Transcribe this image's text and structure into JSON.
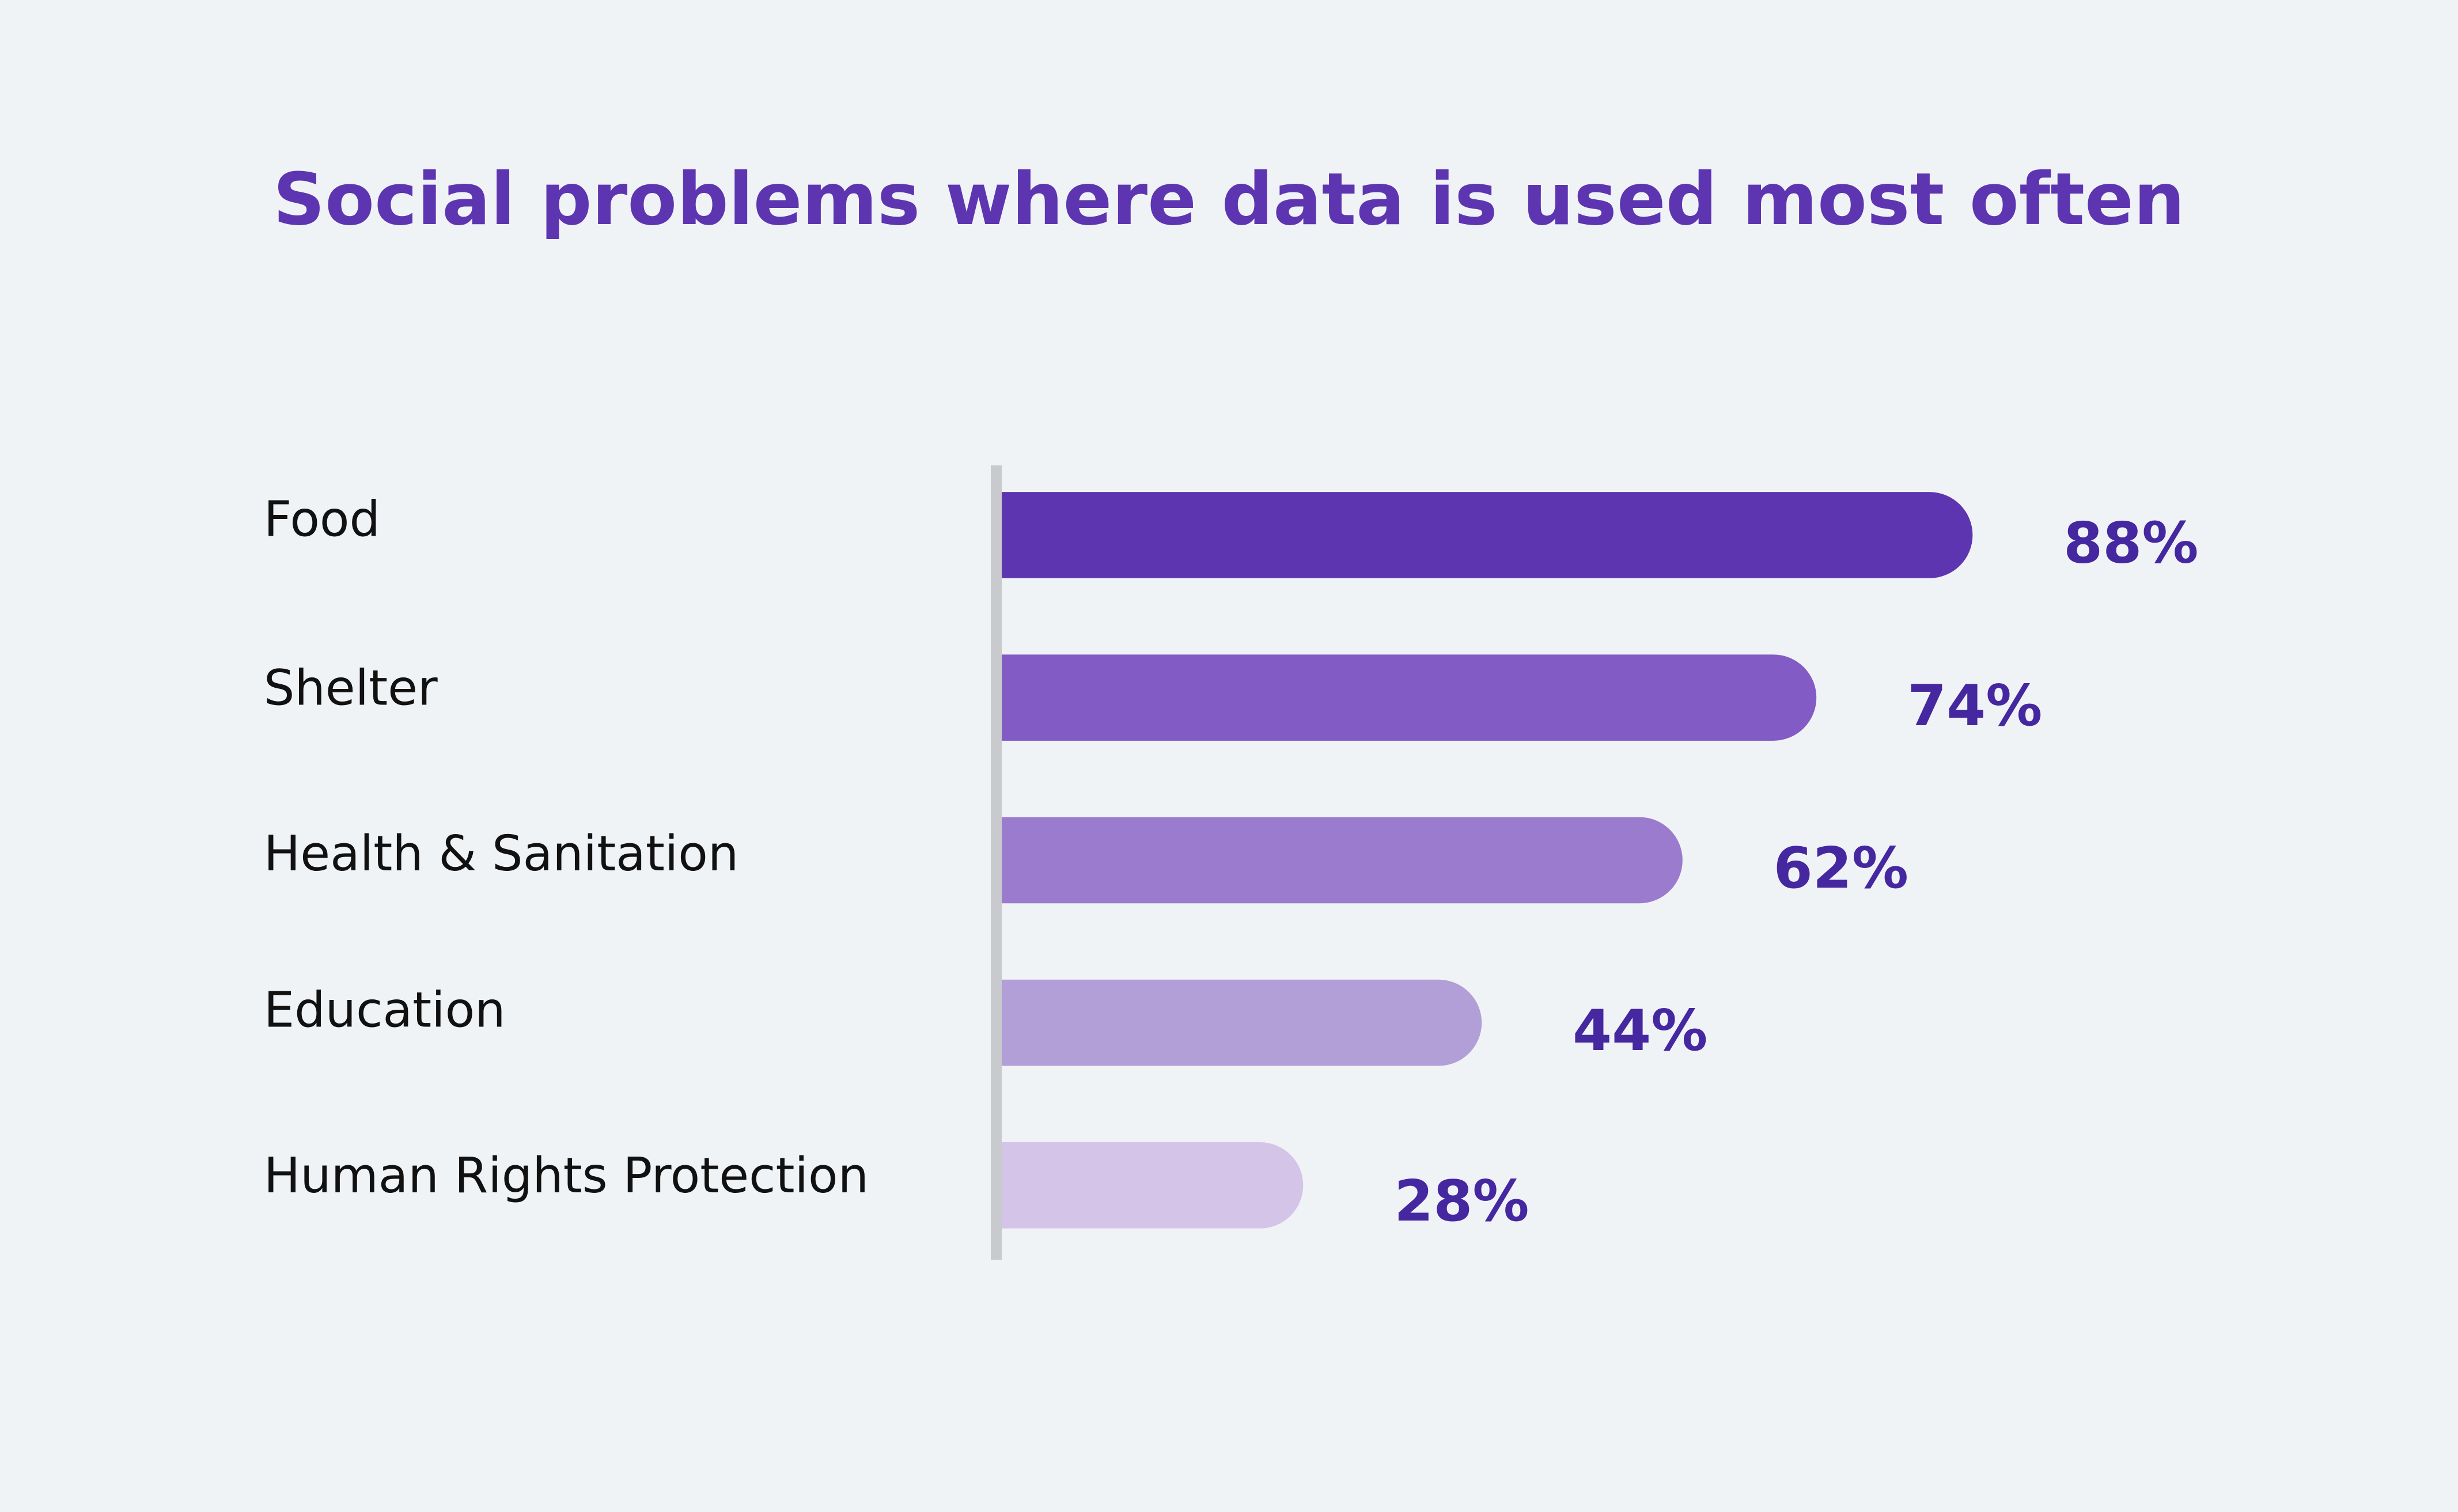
{
  "chart_data": {
    "type": "bar",
    "orientation": "horizontal",
    "title": "Social problems where data is used most often",
    "categories": [
      "Food",
      "Shelter",
      "Health & Sanitation",
      "Education",
      "Human Rights Protection"
    ],
    "values": [
      88,
      74,
      62,
      44,
      28
    ],
    "value_labels": [
      "88%",
      "74%",
      "62%",
      "44%",
      "28%"
    ],
    "unit": "%",
    "xlim": [
      0,
      100
    ],
    "grid": false,
    "legend": "none",
    "colors": {
      "bars": [
        "#5e35b1",
        "#825cc4",
        "#9a7bcd",
        "#b39fd8",
        "#d4c5e8"
      ],
      "title": "#5e35b1",
      "value_labels": "#4527a0",
      "axis": "#c8cacd",
      "background": "#f0f3f6"
    }
  }
}
